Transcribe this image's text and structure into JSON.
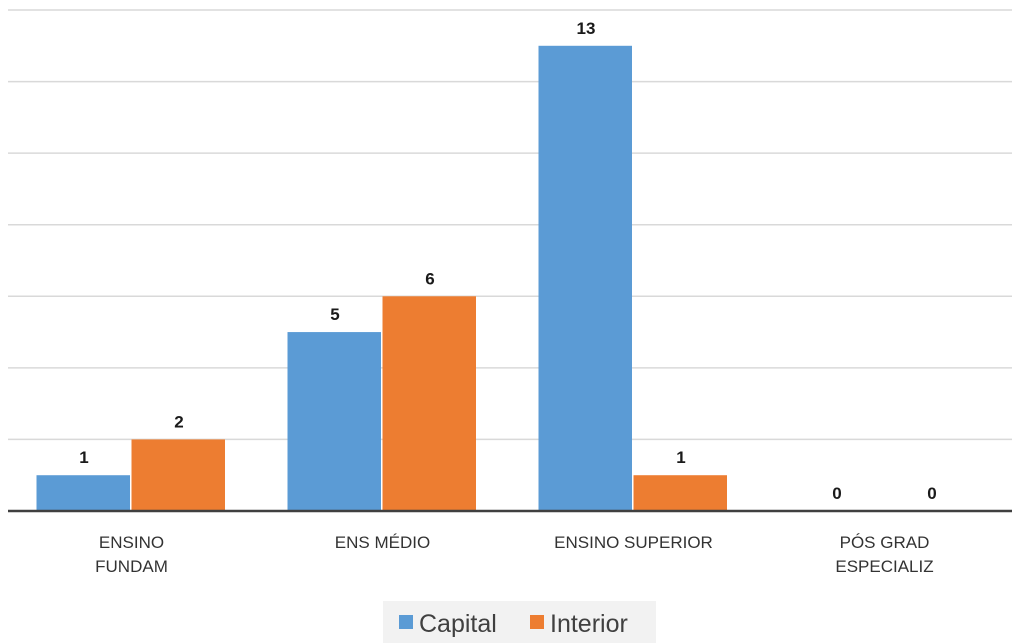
{
  "chart_data": {
    "type": "bar",
    "title": "",
    "xlabel": "",
    "ylabel": "",
    "categories": [
      [
        "ENSINO",
        "FUNDAM"
      ],
      [
        "ENS MÉDIO"
      ],
      [
        "ENSINO SUPERIOR"
      ],
      [
        "PÓS GRAD",
        "ESPECIALIZ"
      ]
    ],
    "series": [
      {
        "name": "Capital",
        "color": "#5b9bd5",
        "values": [
          1,
          5,
          13,
          0
        ]
      },
      {
        "name": "Interior",
        "color": "#ed7d31",
        "values": [
          2,
          6,
          1,
          0
        ]
      }
    ],
    "ylim": [
      0,
      14
    ],
    "grid": true,
    "legend_position": "bottom",
    "data_labels": true
  }
}
